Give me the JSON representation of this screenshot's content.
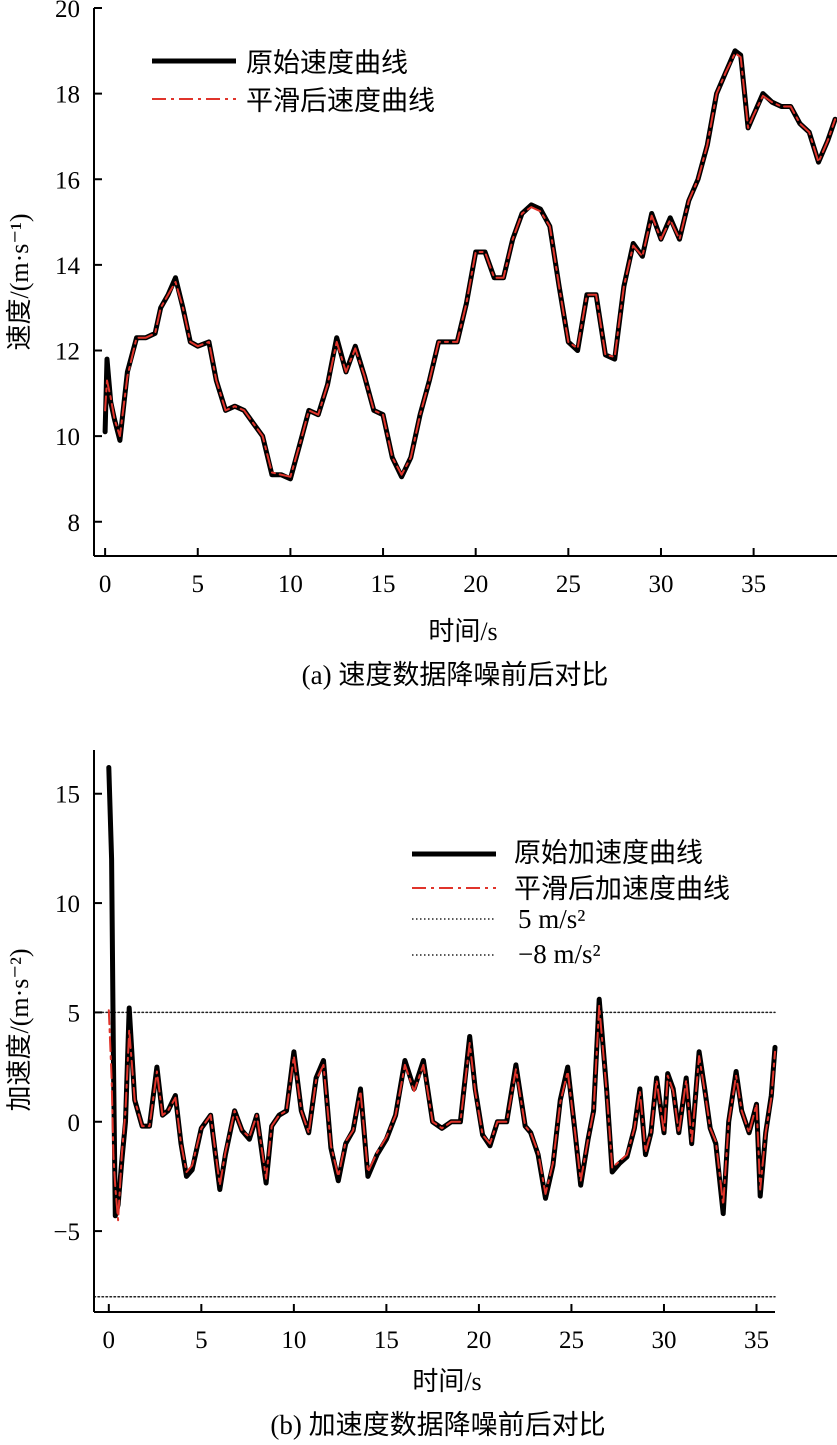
{
  "chart_data": [
    {
      "type": "line",
      "caption": "(a) 速度数据降噪前后对比",
      "xlabel": "时间/s",
      "ylabel": "速度/(m·s⁻¹)",
      "xlim": [
        -0.6,
        39.5
      ],
      "ylim": [
        7.2,
        20
      ],
      "xticks": [
        0,
        5,
        10,
        15,
        20,
        25,
        30,
        35
      ],
      "yticks": [
        8,
        10,
        12,
        14,
        16,
        18,
        20
      ],
      "legend_position": "top-left",
      "series": [
        {
          "name": "原始速度曲线",
          "color": "#000000",
          "style": "solid",
          "x": [
            0,
            0.1,
            0.3,
            0.5,
            0.8,
            1.2,
            1.7,
            2.2,
            2.7,
            3.0,
            3.4,
            3.8,
            4.2,
            4.6,
            5.0,
            5.6,
            6.0,
            6.5,
            7.0,
            7.5,
            8.0,
            8.5,
            9.0,
            9.5,
            10.0,
            10.5,
            11.0,
            11.5,
            12.0,
            12.5,
            13.0,
            13.5,
            14.0,
            14.5,
            15.0,
            15.5,
            16.0,
            16.5,
            17.0,
            17.5,
            18.0,
            18.5,
            19.0,
            19.5,
            20.0,
            20.5,
            21.0,
            21.5,
            22.0,
            22.5,
            23.0,
            23.5,
            24.0,
            24.5,
            25.0,
            25.5,
            26.0,
            26.5,
            27.0,
            27.5,
            28.0,
            28.5,
            29.0,
            29.5,
            30.0,
            30.5,
            31.0,
            31.5,
            32.0,
            32.5,
            33.0,
            33.5,
            34.0,
            34.3,
            34.7,
            35.0,
            35.5,
            36.0,
            36.5,
            37.0,
            37.5,
            38.0,
            38.5,
            39.0,
            39.4
          ],
          "values": [
            10.1,
            11.8,
            10.8,
            10.4,
            9.9,
            11.5,
            12.3,
            12.3,
            12.4,
            13.0,
            13.3,
            13.7,
            13.0,
            12.2,
            12.1,
            12.2,
            11.3,
            10.6,
            10.7,
            10.6,
            10.3,
            10.0,
            9.1,
            9.1,
            9.0,
            9.8,
            10.6,
            10.5,
            11.2,
            12.3,
            11.5,
            12.1,
            11.4,
            10.6,
            10.5,
            9.5,
            9.05,
            9.5,
            10.5,
            11.3,
            12.2,
            12.2,
            12.2,
            13.1,
            14.3,
            14.3,
            13.7,
            13.7,
            14.6,
            15.2,
            15.4,
            15.3,
            14.9,
            13.5,
            12.2,
            12.0,
            13.3,
            13.3,
            11.9,
            11.8,
            13.5,
            14.5,
            14.2,
            15.2,
            14.6,
            15.1,
            14.6,
            15.5,
            16.0,
            16.8,
            18.0,
            18.5,
            19.0,
            18.9,
            17.2,
            17.5,
            18.0,
            17.8,
            17.7,
            17.7,
            17.3,
            17.1,
            16.4,
            16.9,
            17.4
          ]
        },
        {
          "name": "平滑后速度曲线",
          "color": "#e0342b",
          "style": "dashdot",
          "x": [
            0,
            0.1,
            0.3,
            0.5,
            0.8,
            1.2,
            1.7,
            2.2,
            2.7,
            3.0,
            3.4,
            3.8,
            4.2,
            4.6,
            5.0,
            5.6,
            6.0,
            6.5,
            7.0,
            7.5,
            8.0,
            8.5,
            9.0,
            9.5,
            10.0,
            10.5,
            11.0,
            11.5,
            12.0,
            12.5,
            13.0,
            13.5,
            14.0,
            14.5,
            15.0,
            15.5,
            16.0,
            16.5,
            17.0,
            17.5,
            18.0,
            18.5,
            19.0,
            19.5,
            20.0,
            20.5,
            21.0,
            21.5,
            22.0,
            22.5,
            23.0,
            23.5,
            24.0,
            24.5,
            25.0,
            25.5,
            26.0,
            26.5,
            27.0,
            27.5,
            28.0,
            28.5,
            29.0,
            29.5,
            30.0,
            30.5,
            31.0,
            31.5,
            32.0,
            32.5,
            33.0,
            33.5,
            34.0,
            34.3,
            34.7,
            35.0,
            35.5,
            36.0,
            36.5,
            37.0,
            37.5,
            38.0,
            38.5,
            39.0,
            39.4
          ],
          "values": [
            10.6,
            11.3,
            10.9,
            10.4,
            10.0,
            11.4,
            12.3,
            12.3,
            12.4,
            13.0,
            13.3,
            13.6,
            13.0,
            12.2,
            12.1,
            12.2,
            11.3,
            10.6,
            10.7,
            10.6,
            10.3,
            10.0,
            9.15,
            9.1,
            9.05,
            9.8,
            10.6,
            10.5,
            11.2,
            12.2,
            11.5,
            12.05,
            11.4,
            10.6,
            10.5,
            9.5,
            9.1,
            9.5,
            10.5,
            11.3,
            12.2,
            12.2,
            12.2,
            13.1,
            14.3,
            14.3,
            13.7,
            13.7,
            14.6,
            15.2,
            15.35,
            15.25,
            14.9,
            13.5,
            12.2,
            12.05,
            13.3,
            13.3,
            11.9,
            11.85,
            13.5,
            14.45,
            14.2,
            15.15,
            14.6,
            15.05,
            14.6,
            15.5,
            16.0,
            16.8,
            18.0,
            18.5,
            18.95,
            18.85,
            17.2,
            17.5,
            17.95,
            17.8,
            17.7,
            17.7,
            17.3,
            17.1,
            16.4,
            16.9,
            17.4
          ]
        }
      ]
    },
    {
      "type": "line",
      "caption": "(b) 加速度数据降噪前后对比",
      "xlabel": "时间/s",
      "ylabel": "加速度/(m·s⁻²)",
      "xlim": [
        -0.8,
        36
      ],
      "ylim": [
        -8.7,
        17
      ],
      "xticks": [
        0,
        5,
        10,
        15,
        20,
        25,
        30,
        35
      ],
      "yticks": [
        -5,
        0,
        5,
        10,
        15
      ],
      "legend_position": "top-right",
      "series": [
        {
          "name": "原始加速度曲线",
          "color": "#000000",
          "style": "solid",
          "x": [
            0,
            0.15,
            0.25,
            0.35,
            0.5,
            0.7,
            0.9,
            1.1,
            1.4,
            1.8,
            2.2,
            2.6,
            2.9,
            3.2,
            3.6,
            3.9,
            4.2,
            4.5,
            5.0,
            5.5,
            6.0,
            6.3,
            6.8,
            7.2,
            7.6,
            8.0,
            8.5,
            8.8,
            9.2,
            9.6,
            10.0,
            10.4,
            10.8,
            11.2,
            11.6,
            12.0,
            12.4,
            12.8,
            13.2,
            13.6,
            14.0,
            14.5,
            15.0,
            15.5,
            16.0,
            16.5,
            17.0,
            17.5,
            18.0,
            18.5,
            19.0,
            19.5,
            19.8,
            20.2,
            20.6,
            21.0,
            21.5,
            22.0,
            22.5,
            22.8,
            23.2,
            23.6,
            24.0,
            24.4,
            24.8,
            25.2,
            25.5,
            25.9,
            26.2,
            26.5,
            26.9,
            27.2,
            27.6,
            28.0,
            28.4,
            28.7,
            29.0,
            29.3,
            29.6,
            30.0,
            30.2,
            30.5,
            30.8,
            31.2,
            31.5,
            31.9,
            32.2,
            32.5,
            32.8,
            33.2,
            33.5,
            33.9,
            34.2,
            34.6,
            35.0,
            35.2,
            35.5,
            35.8,
            36.0
          ],
          "values": [
            16.2,
            12.0,
            3.0,
            -4.3,
            -3.8,
            -1.8,
            0.0,
            5.2,
            1.0,
            -0.2,
            -0.2,
            2.5,
            0.3,
            0.5,
            1.2,
            -1.0,
            -2.5,
            -2.2,
            -0.3,
            0.3,
            -3.1,
            -1.5,
            0.5,
            -0.4,
            -0.8,
            0.3,
            -2.8,
            -0.2,
            0.3,
            0.5,
            3.2,
            0.5,
            -0.5,
            2.0,
            2.8,
            -1.2,
            -2.7,
            -1.0,
            -0.4,
            1.5,
            -2.5,
            -1.5,
            -0.8,
            0.3,
            2.8,
            1.5,
            2.8,
            0.0,
            -0.3,
            0.0,
            0.0,
            3.9,
            1.5,
            -0.6,
            -1.1,
            0.0,
            0.0,
            2.6,
            -0.2,
            -0.5,
            -1.5,
            -3.5,
            -2.0,
            1.0,
            2.5,
            -0.5,
            -2.9,
            -0.8,
            0.5,
            5.6,
            1.5,
            -2.3,
            -1.9,
            -1.6,
            -0.3,
            1.5,
            -1.5,
            -0.5,
            2.0,
            -0.5,
            2.2,
            1.5,
            -0.5,
            2.0,
            -1.0,
            3.2,
            1.5,
            -0.3,
            -1.0,
            -4.2,
            0.0,
            2.3,
            0.5,
            -0.5,
            0.8,
            -3.4,
            -0.5,
            1.2,
            3.4
          ]
        },
        {
          "name": "平滑后加速度曲线",
          "color": "#e0342b",
          "style": "dashdot",
          "x": [
            0,
            0.15,
            0.25,
            0.35,
            0.5,
            0.7,
            0.9,
            1.1,
            1.4,
            1.8,
            2.2,
            2.6,
            2.9,
            3.2,
            3.6,
            3.9,
            4.2,
            4.5,
            5.0,
            5.5,
            6.0,
            6.3,
            6.8,
            7.2,
            7.6,
            8.0,
            8.5,
            8.8,
            9.2,
            9.6,
            10.0,
            10.4,
            10.8,
            11.2,
            11.6,
            12.0,
            12.4,
            12.8,
            13.2,
            13.6,
            14.0,
            14.5,
            15.0,
            15.5,
            16.0,
            16.5,
            17.0,
            17.5,
            18.0,
            18.5,
            19.0,
            19.5,
            19.8,
            20.2,
            20.6,
            21.0,
            21.5,
            22.0,
            22.5,
            22.8,
            23.2,
            23.6,
            24.0,
            24.4,
            24.8,
            25.2,
            25.5,
            25.9,
            26.2,
            26.5,
            26.9,
            27.2,
            27.6,
            28.0,
            28.4,
            28.7,
            29.0,
            29.3,
            29.6,
            30.0,
            30.2,
            30.5,
            30.8,
            31.2,
            31.5,
            31.9,
            32.2,
            32.5,
            32.8,
            33.2,
            33.5,
            33.9,
            34.2,
            34.6,
            35.0,
            35.2,
            35.5,
            35.8,
            36.0
          ],
          "values": [
            5.1,
            2.0,
            -1.5,
            -3.0,
            -4.5,
            -1.5,
            0.5,
            4.2,
            1.0,
            -0.2,
            -0.2,
            2.3,
            0.3,
            0.5,
            1.1,
            -1.0,
            -2.3,
            -2.0,
            -0.3,
            0.3,
            -2.9,
            -1.4,
            0.5,
            -0.4,
            -0.7,
            0.3,
            -2.6,
            -0.2,
            0.3,
            0.5,
            3.0,
            0.5,
            -0.5,
            1.9,
            2.6,
            -1.1,
            -2.5,
            -0.9,
            -0.4,
            1.4,
            -2.3,
            -1.4,
            -0.7,
            0.3,
            2.6,
            1.4,
            2.6,
            0.0,
            -0.3,
            0.0,
            0.0,
            3.6,
            1.4,
            -0.6,
            -1.0,
            0.0,
            0.0,
            2.4,
            -0.2,
            -0.5,
            -1.4,
            -3.3,
            -1.9,
            0.9,
            2.3,
            -0.5,
            -2.7,
            -0.8,
            0.5,
            5.3,
            1.4,
            -2.1,
            -1.8,
            -1.5,
            -0.3,
            1.4,
            -1.4,
            -0.5,
            1.9,
            -0.5,
            2.1,
            1.4,
            -0.5,
            1.9,
            -0.9,
            3.0,
            1.4,
            -0.3,
            -0.9,
            -3.8,
            0.0,
            2.1,
            0.5,
            -0.5,
            0.8,
            -3.1,
            -0.5,
            1.1,
            3.2
          ]
        },
        {
          "name": "5 m/s²",
          "color": "#222222",
          "style": "dotted",
          "x": [
            -0.8,
            36
          ],
          "values": [
            5,
            5
          ]
        },
        {
          "name": "−8 m/s²",
          "color": "#222222",
          "style": "dotted",
          "x": [
            -0.8,
            36
          ],
          "values": [
            -8,
            -8
          ]
        }
      ]
    }
  ]
}
